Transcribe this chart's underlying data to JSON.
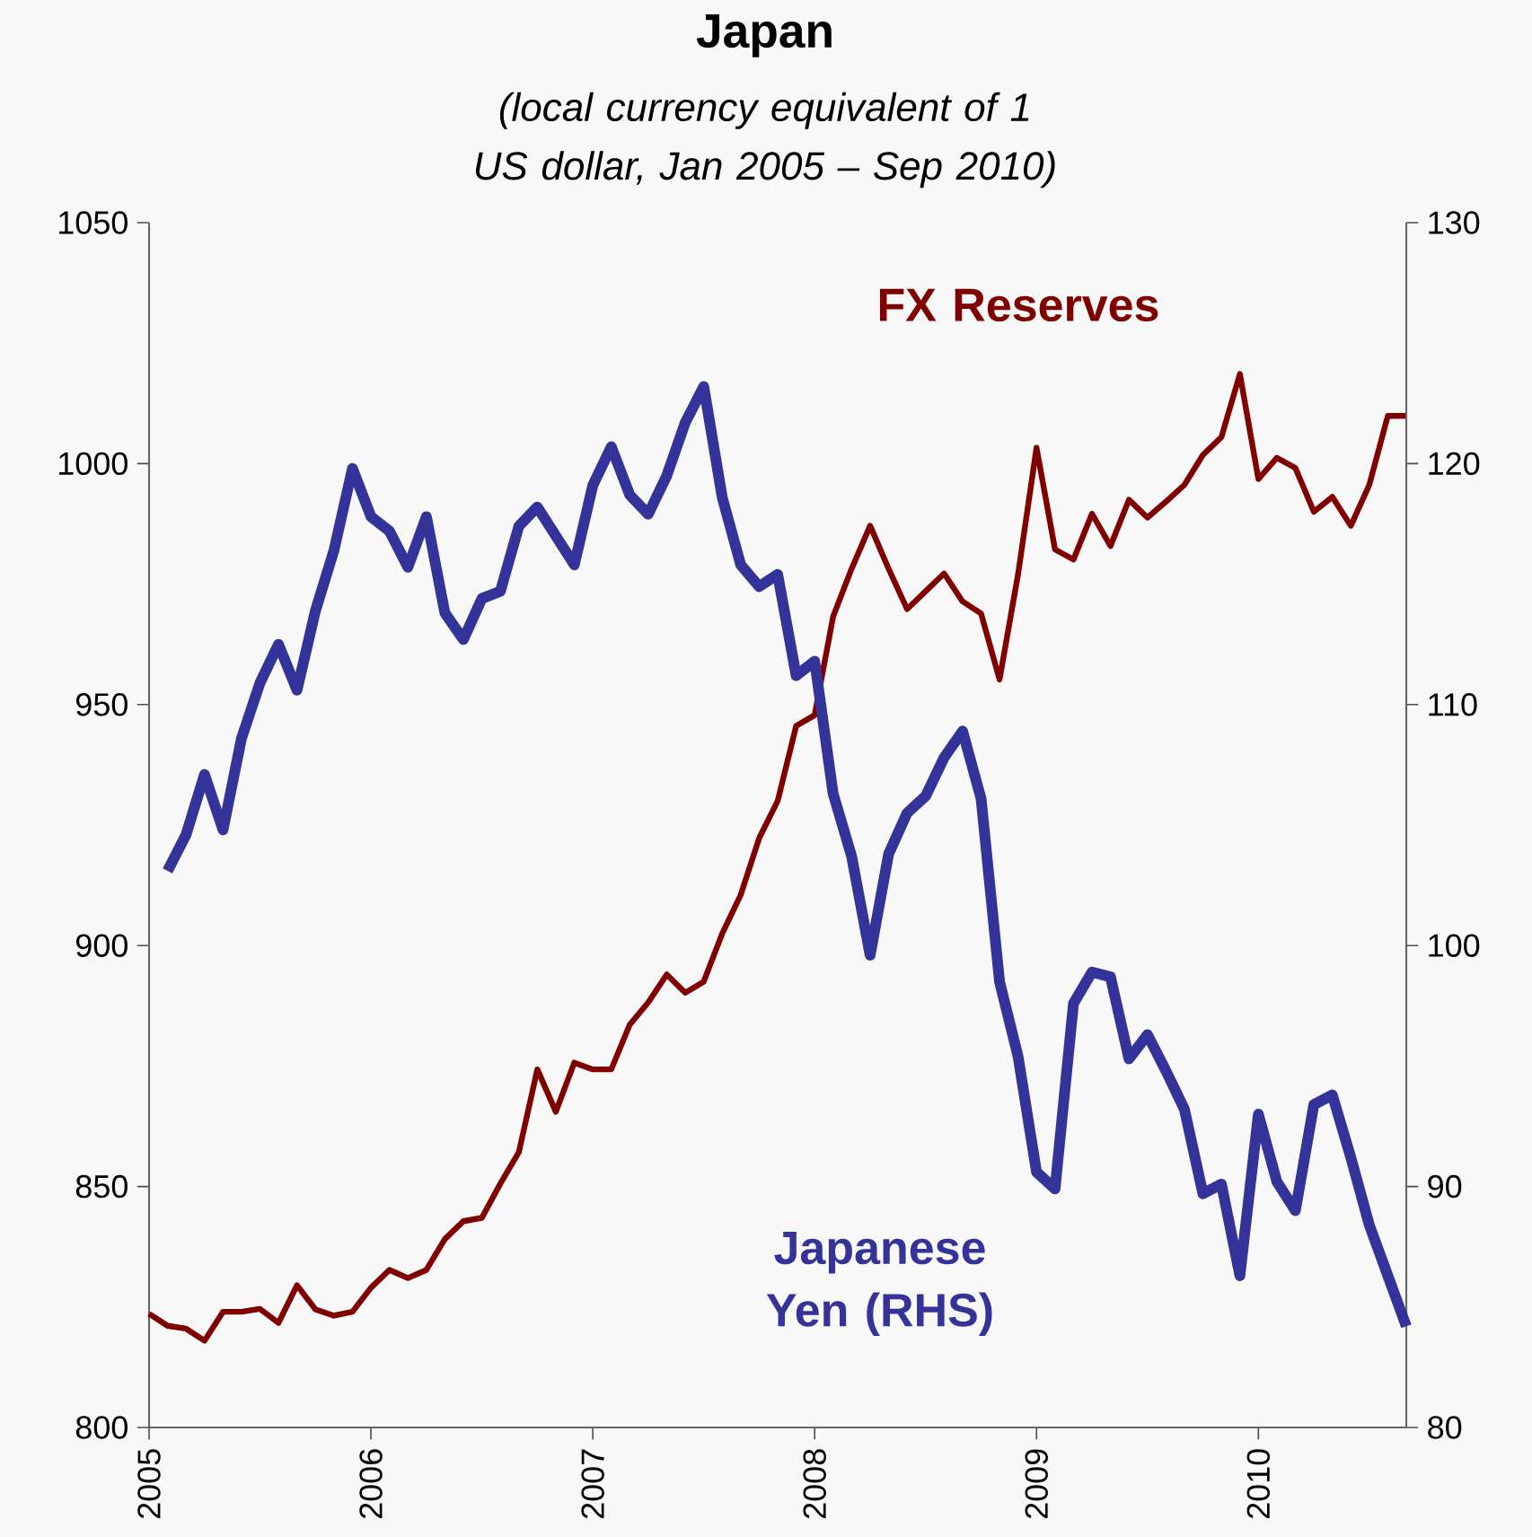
{
  "chart_data": {
    "type": "line",
    "title": "Japan",
    "subtitle": "(local currency equivalent of 1 US dollar, Jan 2005 – Sep 2010)",
    "xlim": [
      "2005-01",
      "2010-09"
    ],
    "xticks": [
      "2005",
      "2006",
      "2007",
      "2008",
      "2009",
      "2010"
    ],
    "ylim": [
      800,
      1050
    ],
    "yticks": [
      800,
      850,
      900,
      950,
      1000,
      1050
    ],
    "y2lim": [
      80,
      130
    ],
    "y2ticks": [
      80,
      90,
      100,
      110,
      120,
      130
    ],
    "x": [
      "2005-01",
      "2005-02",
      "2005-03",
      "2005-04",
      "2005-05",
      "2005-06",
      "2005-07",
      "2005-08",
      "2005-09",
      "2005-10",
      "2005-11",
      "2005-12",
      "2006-01",
      "2006-02",
      "2006-03",
      "2006-04",
      "2006-05",
      "2006-06",
      "2006-07",
      "2006-08",
      "2006-09",
      "2006-10",
      "2006-11",
      "2006-12",
      "2007-01",
      "2007-02",
      "2007-03",
      "2007-04",
      "2007-05",
      "2007-06",
      "2007-07",
      "2007-08",
      "2007-09",
      "2007-10",
      "2007-11",
      "2007-12",
      "2008-01",
      "2008-02",
      "2008-03",
      "2008-04",
      "2008-05",
      "2008-06",
      "2008-07",
      "2008-08",
      "2008-09",
      "2008-10",
      "2008-11",
      "2008-12",
      "2009-01",
      "2009-02",
      "2009-03",
      "2009-04",
      "2009-05",
      "2009-06",
      "2009-07",
      "2009-08",
      "2009-09",
      "2009-10",
      "2009-11",
      "2009-12",
      "2010-01",
      "2010-02",
      "2010-03",
      "2010-04",
      "2010-05",
      "2010-06",
      "2010-07",
      "2010-08",
      "2010-09"
    ],
    "series": [
      {
        "name": "FX Reserves",
        "color": "#800000",
        "values": [
          823.6,
          821.1,
          820.5,
          818.0,
          824.0,
          824.0,
          824.6,
          821.7,
          829.5,
          824.5,
          823.2,
          824.0,
          829.0,
          832.7,
          831.0,
          832.7,
          839.1,
          842.8,
          843.5,
          850.6,
          857.1,
          874.3,
          865.5,
          875.7,
          874.3,
          874.3,
          883.6,
          888.2,
          894.0,
          890.2,
          892.5,
          902.5,
          910.5,
          922.3,
          930.0,
          945.6,
          947.8,
          968.3,
          978.2,
          987.1,
          978.2,
          969.8,
          973.5,
          977.2,
          971.4,
          968.9,
          955.2,
          977.0,
          1003.3,
          982.2,
          980.1,
          989.6,
          982.9,
          992.5,
          988.8,
          992.1,
          995.6,
          1001.8,
          1005.5,
          1018.6,
          996.8,
          1001.2,
          999.1,
          990.0,
          993.1,
          987.1,
          995.6,
          1009.9,
          1009.9
        ]
      },
      {
        "name": "Japanese Yen (RHS)",
        "color": "#333399",
        "axis": "y2",
        "x": [
          "2005-02",
          "2005-03",
          "2005-04",
          "2005-05",
          "2005-06",
          "2005-07",
          "2005-08",
          "2005-09",
          "2005-10",
          "2005-11",
          "2005-12",
          "2006-01",
          "2006-02",
          "2006-03",
          "2006-04",
          "2006-05",
          "2006-06",
          "2006-07",
          "2006-08",
          "2006-09",
          "2006-10",
          "2006-11",
          "2006-12",
          "2007-01",
          "2007-02",
          "2007-03",
          "2007-04",
          "2007-05",
          "2007-06",
          "2007-07",
          "2007-08",
          "2007-09",
          "2007-10",
          "2007-11",
          "2007-12",
          "2008-01",
          "2008-02",
          "2008-03",
          "2008-04",
          "2008-05",
          "2008-06",
          "2008-07",
          "2008-08",
          "2008-09",
          "2008-10",
          "2008-11",
          "2008-12",
          "2009-01",
          "2009-02",
          "2009-03",
          "2009-04",
          "2009-05",
          "2009-06",
          "2009-07",
          "2009-08",
          "2009-09",
          "2009-10",
          "2009-11",
          "2009-12",
          "2010-01",
          "2010-02",
          "2010-03",
          "2010-04",
          "2010-05",
          "2010-06",
          "2010-07",
          "2010-08",
          "2010-09"
        ],
        "values": [
          103.1,
          104.6,
          107.1,
          104.8,
          108.6,
          110.9,
          112.5,
          110.6,
          113.9,
          116.4,
          119.8,
          117.8,
          117.2,
          115.7,
          117.8,
          113.8,
          112.7,
          114.4,
          114.7,
          117.4,
          118.2,
          117.0,
          115.8,
          119.1,
          120.7,
          118.7,
          117.9,
          119.5,
          121.7,
          123.2,
          118.6,
          115.8,
          114.9,
          115.4,
          111.2,
          111.8,
          106.3,
          103.7,
          99.6,
          103.8,
          105.5,
          106.2,
          107.8,
          108.9,
          106.1,
          98.5,
          95.4,
          90.6,
          89.9,
          97.6,
          98.9,
          98.7,
          95.3,
          96.3,
          94.8,
          93.2,
          89.7,
          90.1,
          86.3,
          93.0,
          90.2,
          89.0,
          93.4,
          93.8,
          91.2,
          88.4,
          86.3,
          84.2
        ]
      }
    ]
  }
}
